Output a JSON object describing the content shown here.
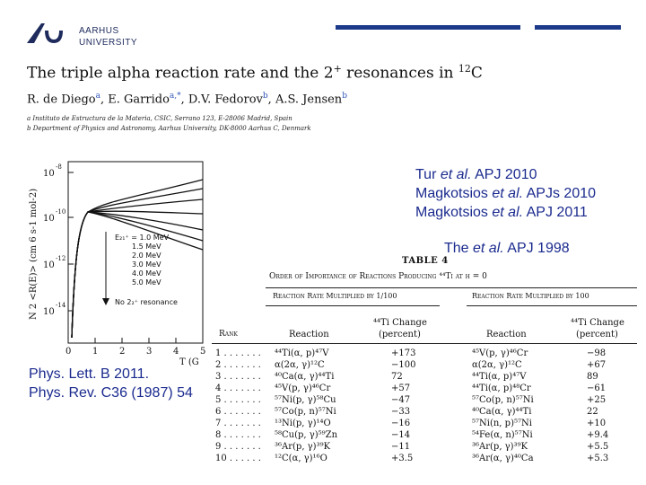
{
  "logo": {
    "line1": "AARHUS",
    "line2": "UNIVERSITY"
  },
  "paper": {
    "title": "The triple alpha reaction rate and the 2",
    "title_sup": "+",
    "title_end": " resonances in ",
    "title_iso": "12",
    "title_el": "C",
    "authors": [
      {
        "name": "R. de Diego",
        "aff": "a"
      },
      {
        "name": "E. Garrido",
        "aff": "a,*"
      },
      {
        "name": "D.V. Fedorov",
        "aff": "b"
      },
      {
        "name": "A.S. Jensen",
        "aff": "b"
      }
    ],
    "affil_a": "a Instituto de Estructura de la Materia, CSIC, Serrano 123, E-28006 Madrid, Spain",
    "affil_b": "b Department of Physics and Astronomy, Aarhus University, DK-8000 Aarhus C, Denmark"
  },
  "refs": {
    "r1a": "Tur ",
    "r1b": "et al.",
    "r1c": "  APJ 2010",
    "r2a": "Magkotsios ",
    "r2b": "et al.",
    "r2c": " APJs 2010",
    "r3a": "Magkotsios ",
    "r3b": "et al.",
    "r3c": " APJ 2011",
    "the_a": "The ",
    "the_b": "et al.",
    "the_c": " APJ 1998"
  },
  "phys": {
    "l1": "Phys. Lett. B 2011.",
    "l2": "Phys. Rev. C36 (1987) 54"
  },
  "plot": {
    "y_ticks": [
      "10",
      "10",
      "10",
      "10"
    ],
    "y_exps": [
      "-8",
      "-10",
      "-12",
      "-14"
    ],
    "x_ticks": [
      "0",
      "1",
      "2",
      "3",
      "4",
      "5"
    ],
    "xlabel": "T (G",
    "ylabel": "N  2 <R(E)> (cm 6 s-1 mol-2)",
    "legend": [
      "E₂₁⁺ = 1.0 MeV",
      "1.5 MeV",
      "2.0 MeV",
      "3.0 MeV",
      "4.0 MeV",
      "5.0 MeV",
      "No 2₂⁺ resonance"
    ]
  },
  "table": {
    "title": "TABLE 4",
    "subtitle": "Order of Importance of Reactions Producing ⁴⁴Ti at η = 0",
    "left_head": "Reaction Rate Multiplied by 1/100",
    "right_head": "Reaction Rate Multiplied by 100",
    "col_rank": "Rank",
    "col_reaction": "Reaction",
    "col_change_1": "⁴⁴Ti Change",
    "col_change_2": "(percent)",
    "rows": [
      {
        "rank": "1 . . . . . . .",
        "r1": "⁴⁴Ti(α, p)⁴⁷V",
        "c1": "+173",
        "r2": "⁴⁵V(p, γ)⁴⁶Cr",
        "c2": "−98"
      },
      {
        "rank": "2 . . . . . . .",
        "r1": "α(2α, γ)¹²C",
        "c1": "−100",
        "r2": "α(2α, γ)¹²C",
        "c2": "+67"
      },
      {
        "rank": "3 . . . . . . .",
        "r1": "⁴⁰Ca(α, γ)⁴⁴Ti",
        "c1": "72",
        "r2": "⁴⁴Ti(α, p)⁴⁷V",
        "c2": "89"
      },
      {
        "rank": "4 . . . . . . .",
        "r1": "⁴⁵V(p, γ)⁴⁶Cr",
        "c1": "+57",
        "r2": "⁴⁴Ti(α, p)⁴⁸Cr",
        "c2": "−61"
      },
      {
        "rank": "5 . . . . . . .",
        "r1": "⁵⁷Ni(p, γ)⁵⁸Cu",
        "c1": "−47",
        "r2": "⁵⁷Co(p, n)⁵⁷Ni",
        "c2": "+25"
      },
      {
        "rank": "6 . . . . . . .",
        "r1": "⁵⁷Co(p, n)⁵⁷Ni",
        "c1": "−33",
        "r2": "⁴⁰Ca(α, γ)⁴⁴Ti",
        "c2": "22"
      },
      {
        "rank": "7 . . . . . . .",
        "r1": "¹³Ni(p, γ)¹⁴O",
        "c1": "−16",
        "r2": "⁵⁷Ni(n, p)⁵⁷Ni",
        "c2": "+10"
      },
      {
        "rank": "8 . . . . . . .",
        "r1": "⁵⁸Cu(p, γ)⁵⁹Zn",
        "c1": "−14",
        "r2": "⁵⁴Fe(α, n)⁵⁷Ni",
        "c2": "+9.4"
      },
      {
        "rank": "9 . . . . . . .",
        "r1": "³⁶Ar(p, γ)³⁹K",
        "c1": "−11",
        "r2": "³⁶Ar(p, γ)³⁹K",
        "c2": "+5.5"
      },
      {
        "rank": "10 . . . . . .",
        "r1": "¹²C(α, γ)¹⁶O",
        "c1": "+3.5",
        "r2": "³⁶Ar(α, γ)⁴⁰Ca",
        "c2": "+5.3"
      }
    ]
  }
}
